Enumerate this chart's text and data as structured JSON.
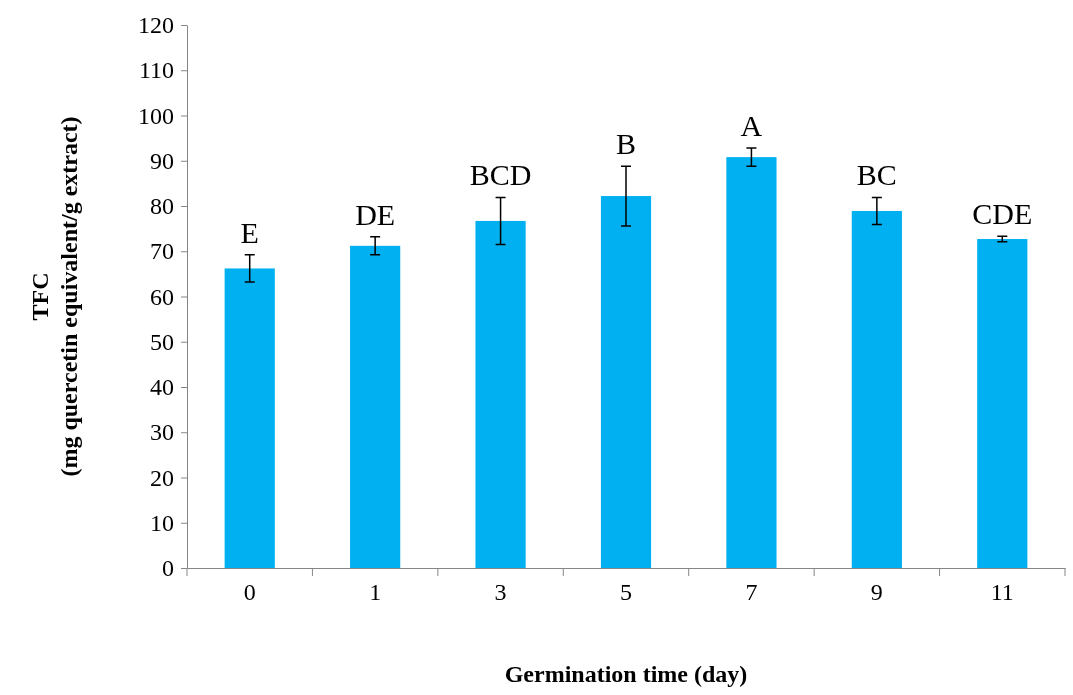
{
  "chart_data": {
    "type": "bar",
    "xlabel": "Germination time (day)",
    "ylabel": "TFC\n(mg quercetin equivalent/g extract)",
    "categories": [
      "0",
      "1",
      "3",
      "5",
      "7",
      "9",
      "11"
    ],
    "values": [
      66.2,
      71.2,
      76.7,
      82.2,
      90.8,
      78.9,
      72.7
    ],
    "errors": [
      3,
      2,
      5.2,
      6.6,
      2,
      3,
      0.6
    ],
    "color": "#00b0f0",
    "ylim": [
      0,
      120
    ],
    "yticks": [
      0,
      10,
      20,
      30,
      40,
      50,
      60,
      70,
      80,
      90,
      100,
      110,
      120
    ],
    "grid": false,
    "annotations": [
      {
        "text": "E",
        "x": "0",
        "y": 69.2
      },
      {
        "text": "DE",
        "x": "1",
        "y": 73.2
      },
      {
        "text": "BCD",
        "x": "3",
        "y": 81.9
      },
      {
        "text": "B",
        "x": "5",
        "y": 88.8
      },
      {
        "text": "A",
        "x": "7",
        "y": 92.8
      },
      {
        "text": "BC",
        "x": "9",
        "y": 81.9
      },
      {
        "text": "CDE",
        "x": "11",
        "y": 73.3
      }
    ]
  }
}
